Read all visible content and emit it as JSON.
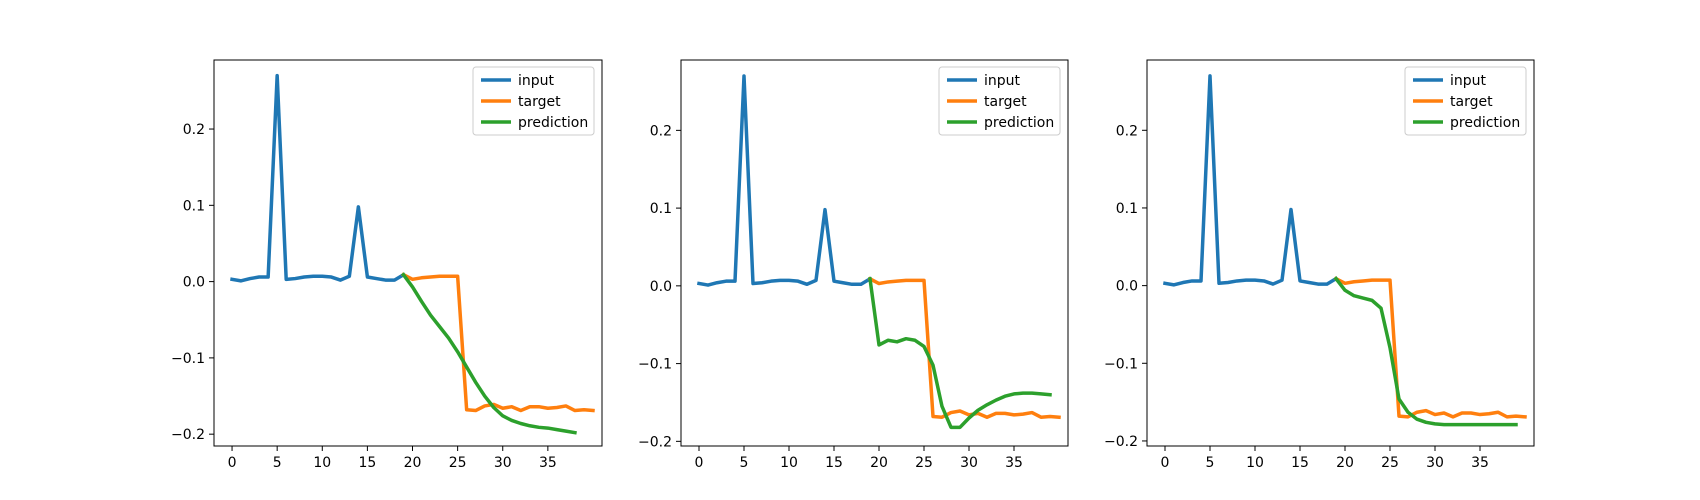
{
  "chart_data": [
    {
      "type": "line",
      "xticks": [
        0,
        5,
        10,
        15,
        20,
        25,
        30,
        35
      ],
      "xtick_labels": [
        "0",
        "5",
        "10",
        "15",
        "20",
        "25",
        "30",
        "35"
      ],
      "xlim": [
        -2,
        41
      ],
      "yticks": [
        -0.2,
        -0.1,
        0.0,
        0.1,
        0.2
      ],
      "ytick_labels": [
        "−0.2",
        "−0.1",
        "0.0",
        "0.1",
        "0.2"
      ],
      "ylim": [
        -0.2155,
        0.2905
      ],
      "legend": "top-right",
      "series": [
        {
          "name": "input",
          "color": "#1f77b4",
          "x_start": 0,
          "values": [
            0.003,
            0.001,
            0.004,
            0.006,
            0.006,
            0.27,
            0.003,
            0.004,
            0.006,
            0.007,
            0.007,
            0.006,
            0.002,
            0.007,
            0.098,
            0.006,
            0.004,
            0.002,
            0.002,
            0.009
          ]
        },
        {
          "name": "target",
          "color": "#ff7f0e",
          "x_start": 19,
          "values": [
            0.009,
            0.003,
            0.005,
            0.006,
            0.007,
            0.007,
            0.007,
            -0.168,
            -0.169,
            -0.163,
            -0.161,
            -0.166,
            -0.164,
            -0.169,
            -0.164,
            -0.164,
            -0.166,
            -0.165,
            -0.163,
            -0.169,
            -0.168,
            -0.169
          ]
        },
        {
          "name": "prediction",
          "color": "#2ca02c",
          "x_start": 19,
          "values": [
            0.009,
            -0.007,
            -0.026,
            -0.044,
            -0.059,
            -0.074,
            -0.092,
            -0.112,
            -0.132,
            -0.15,
            -0.165,
            -0.176,
            -0.182,
            -0.186,
            -0.189,
            -0.191,
            -0.192,
            -0.194,
            -0.196,
            -0.198
          ]
        }
      ]
    },
    {
      "type": "line",
      "xticks": [
        0,
        5,
        10,
        15,
        20,
        25,
        30,
        35
      ],
      "xtick_labels": [
        "0",
        "5",
        "10",
        "15",
        "20",
        "25",
        "30",
        "35"
      ],
      "xlim": [
        -2,
        41
      ],
      "yticks": [
        -0.2,
        -0.1,
        0.0,
        0.1,
        0.2
      ],
      "ytick_labels": [
        "−0.2",
        "−0.1",
        "0.0",
        "0.1",
        "0.2"
      ],
      "ylim": [
        -0.206,
        0.2905
      ],
      "legend": "top-right",
      "series": [
        {
          "name": "input",
          "color": "#1f77b4",
          "x_start": 0,
          "values": [
            0.003,
            0.001,
            0.004,
            0.006,
            0.006,
            0.27,
            0.003,
            0.004,
            0.006,
            0.007,
            0.007,
            0.006,
            0.002,
            0.007,
            0.098,
            0.006,
            0.004,
            0.002,
            0.002,
            0.009
          ]
        },
        {
          "name": "target",
          "color": "#ff7f0e",
          "x_start": 19,
          "values": [
            0.009,
            0.003,
            0.005,
            0.006,
            0.007,
            0.007,
            0.007,
            -0.168,
            -0.169,
            -0.163,
            -0.161,
            -0.166,
            -0.164,
            -0.169,
            -0.164,
            -0.164,
            -0.166,
            -0.165,
            -0.163,
            -0.169,
            -0.168,
            -0.169
          ]
        },
        {
          "name": "prediction",
          "color": "#2ca02c",
          "x_start": 19,
          "values": [
            0.009,
            -0.076,
            -0.07,
            -0.072,
            -0.068,
            -0.07,
            -0.078,
            -0.102,
            -0.155,
            -0.182,
            -0.182,
            -0.17,
            -0.16,
            -0.153,
            -0.147,
            -0.142,
            -0.139,
            -0.138,
            -0.138,
            -0.139,
            -0.14
          ]
        }
      ]
    },
    {
      "type": "line",
      "xticks": [
        0,
        5,
        10,
        15,
        20,
        25,
        30,
        35
      ],
      "xtick_labels": [
        "0",
        "5",
        "10",
        "15",
        "20",
        "25",
        "30",
        "35"
      ],
      "xlim": [
        -2,
        41
      ],
      "yticks": [
        -0.2,
        -0.1,
        0.0,
        0.1,
        0.2
      ],
      "ytick_labels": [
        "−0.2",
        "−0.1",
        "0.0",
        "0.1",
        "0.2"
      ],
      "ylim": [
        -0.2065,
        0.2905
      ],
      "legend": "top-right",
      "series": [
        {
          "name": "input",
          "color": "#1f77b4",
          "x_start": 0,
          "values": [
            0.003,
            0.001,
            0.004,
            0.006,
            0.006,
            0.27,
            0.003,
            0.004,
            0.006,
            0.007,
            0.007,
            0.006,
            0.002,
            0.007,
            0.098,
            0.006,
            0.004,
            0.002,
            0.002,
            0.009
          ]
        },
        {
          "name": "target",
          "color": "#ff7f0e",
          "x_start": 19,
          "values": [
            0.009,
            0.003,
            0.005,
            0.006,
            0.007,
            0.007,
            0.007,
            -0.168,
            -0.169,
            -0.163,
            -0.161,
            -0.166,
            -0.164,
            -0.169,
            -0.164,
            -0.164,
            -0.166,
            -0.165,
            -0.163,
            -0.169,
            -0.168,
            -0.169
          ]
        },
        {
          "name": "prediction",
          "color": "#2ca02c",
          "x_start": 19,
          "values": [
            0.009,
            -0.006,
            -0.013,
            -0.016,
            -0.019,
            -0.029,
            -0.08,
            -0.146,
            -0.163,
            -0.172,
            -0.176,
            -0.178,
            -0.179,
            -0.179,
            -0.179,
            -0.179,
            -0.179,
            -0.179,
            -0.179,
            -0.179,
            -0.179
          ]
        }
      ]
    }
  ]
}
